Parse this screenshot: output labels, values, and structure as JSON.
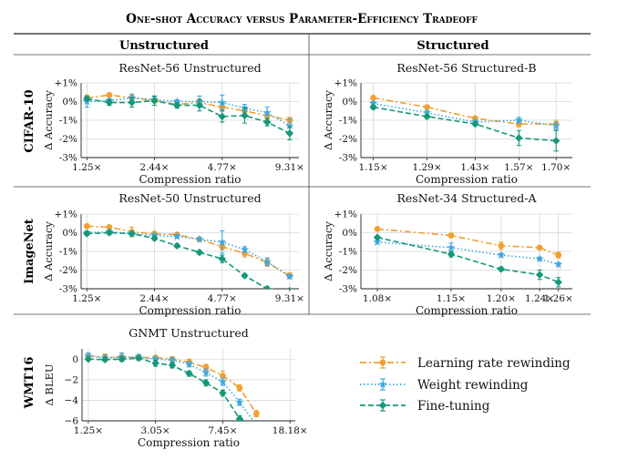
{
  "figure": {
    "title": "One-shot Accuracy versus Parameter-Efficiency Tradeoff",
    "col_unstructured": "Unstructured",
    "col_structured": "Structured",
    "row_labels": [
      "CIFAR-10",
      "ImageNet",
      "WMT16"
    ]
  },
  "legend": {
    "entries": [
      {
        "label": "Learning rate rewinding",
        "color": "#f0a030",
        "marker": "circle",
        "dash": "dashdot"
      },
      {
        "label": "Weight rewinding",
        "color": "#40a8e0",
        "marker": "star",
        "dash": "dotted"
      },
      {
        "label": "Fine-tuning",
        "color": "#14987a",
        "marker": "diamond",
        "dash": "dashed"
      }
    ]
  },
  "chart_data": [
    {
      "type": "line",
      "title": "ResNet-56 Unstructured",
      "xlabel": "Compression ratio",
      "ylabel": "Δ Accuracy",
      "x_scale": "log",
      "xlim": [
        1.18,
        10.2
      ],
      "ylim": [
        -3,
        1
      ],
      "xticks": [
        1.25,
        2.44,
        4.77,
        9.31
      ],
      "xtick_labels": [
        "1.25×",
        "2.44×",
        "4.77×",
        "9.31×"
      ],
      "yticks": [
        1,
        0,
        -1,
        -2,
        -3
      ],
      "ytick_labels": [
        "+1%",
        "0%",
        "-1%",
        "-2%",
        "-3%"
      ],
      "x": [
        1.25,
        1.56,
        1.95,
        2.44,
        3.05,
        3.81,
        4.77,
        5.96,
        7.45,
        9.31
      ],
      "series": [
        {
          "name": "Learning rate rewinding",
          "values": [
            0.2,
            0.35,
            0.2,
            0.05,
            -0.15,
            -0.05,
            -0.3,
            -0.5,
            -0.75,
            -1.0
          ],
          "errors": [
            0.15,
            0.1,
            0.15,
            0.1,
            0.15,
            0.2,
            0.2,
            0.2,
            0.2,
            0.15
          ]
        },
        {
          "name": "Weight rewinding",
          "values": [
            0.0,
            0.05,
            0.2,
            0.1,
            0.0,
            0.0,
            -0.05,
            -0.35,
            -0.6,
            -1.3
          ],
          "errors": [
            0.3,
            0.1,
            0.2,
            0.15,
            0.1,
            0.3,
            0.4,
            0.2,
            0.3,
            0.35
          ]
        },
        {
          "name": "Fine-tuning",
          "values": [
            0.15,
            -0.05,
            -0.05,
            0.05,
            -0.2,
            -0.2,
            -0.8,
            -0.75,
            -1.1,
            -1.7
          ],
          "errors": [
            0.1,
            0.15,
            0.25,
            0.25,
            0.15,
            0.3,
            0.3,
            0.4,
            0.2,
            0.35
          ]
        }
      ]
    },
    {
      "type": "line",
      "title": "ResNet-56 Structured-B",
      "xlabel": "Compression ratio",
      "ylabel": "Δ Accuracy",
      "x_scale": "log",
      "xlim": [
        1.12,
        1.76
      ],
      "ylim": [
        -3,
        1
      ],
      "xticks": [
        1.15,
        1.29,
        1.43,
        1.57,
        1.7
      ],
      "xtick_labels": [
        "1.15×",
        "1.29×",
        "1.43×",
        "1.57×",
        "1.70×"
      ],
      "yticks": [
        1,
        0,
        -1,
        -2,
        -3
      ],
      "ytick_labels": [
        "+1%",
        "0%",
        "-1%",
        "-2%",
        "-3%"
      ],
      "x": [
        1.15,
        1.29,
        1.43,
        1.57,
        1.7
      ],
      "series": [
        {
          "name": "Learning rate rewinding",
          "values": [
            0.2,
            -0.3,
            -0.9,
            -1.2,
            -1.2
          ],
          "errors": [
            0.1,
            0.1,
            0.1,
            0.15,
            0.2
          ]
        },
        {
          "name": "Weight rewinding",
          "values": [
            -0.1,
            -0.6,
            -1.1,
            -1.0,
            -1.3
          ],
          "errors": [
            0.1,
            0.1,
            0.1,
            0.15,
            0.2
          ]
        },
        {
          "name": "Fine-tuning",
          "values": [
            -0.3,
            -0.8,
            -1.2,
            -1.95,
            -2.1
          ],
          "errors": [
            0.1,
            0.1,
            0.1,
            0.4,
            0.55
          ]
        }
      ]
    },
    {
      "type": "line",
      "title": "ResNet-50 Unstructured",
      "xlabel": "Compression ratio",
      "ylabel": "Δ Accuracy",
      "x_scale": "log",
      "xlim": [
        1.18,
        10.2
      ],
      "ylim": [
        -3,
        1
      ],
      "xticks": [
        1.25,
        2.44,
        4.77,
        9.31
      ],
      "xtick_labels": [
        "1.25×",
        "2.44×",
        "4.77×",
        "9.31×"
      ],
      "yticks": [
        1,
        0,
        -1,
        -2,
        -3
      ],
      "ytick_labels": [
        "+1%",
        "0%",
        "-1%",
        "-2%",
        "-3%"
      ],
      "x": [
        1.25,
        1.56,
        1.95,
        2.44,
        3.05,
        3.81,
        4.77,
        5.96,
        7.45,
        9.31
      ],
      "series": [
        {
          "name": "Learning rate rewinding",
          "values": [
            0.35,
            0.3,
            0.05,
            -0.05,
            -0.1,
            -0.35,
            -0.75,
            -1.1,
            -1.6,
            -2.3
          ],
          "errors": [
            0.1,
            0.1,
            0.25,
            0.1,
            0.1,
            0.1,
            0.15,
            0.2,
            0.2,
            0.15
          ]
        },
        {
          "name": "Weight rewinding",
          "values": [
            0.0,
            0.05,
            -0.05,
            -0.15,
            -0.2,
            -0.35,
            -0.5,
            -0.9,
            -1.55,
            -2.35
          ],
          "errors": [
            0.1,
            0.1,
            0.1,
            0.1,
            0.1,
            0.1,
            0.6,
            0.15,
            0.2,
            0.1
          ]
        },
        {
          "name": "Fine-tuning",
          "values": [
            -0.05,
            0.0,
            -0.05,
            -0.3,
            -0.7,
            -1.05,
            -1.4,
            -2.3,
            -3.0,
            -3.1
          ],
          "errors": [
            0.05,
            0.05,
            0.05,
            0.1,
            0.1,
            0.1,
            0.2,
            0.1,
            0.1,
            0.1
          ]
        }
      ]
    },
    {
      "type": "line",
      "title": "ResNet-34 Structured-A",
      "xlabel": "Compression ratio",
      "ylabel": "Δ Accuracy",
      "x_scale": "log",
      "xlim": [
        1.065,
        1.275
      ],
      "ylim": [
        -3,
        1
      ],
      "xticks": [
        1.08,
        1.15,
        1.2,
        1.24,
        1.26
      ],
      "xtick_labels": [
        "1.08×",
        "1.15×",
        "1.20×",
        "1.24×",
        "1.26×"
      ],
      "yticks": [
        1,
        0,
        -1,
        -2,
        -3
      ],
      "ytick_labels": [
        "+1%",
        "0%",
        "-1%",
        "-2%",
        "-3%"
      ],
      "x": [
        1.08,
        1.15,
        1.2,
        1.24,
        1.26
      ],
      "series": [
        {
          "name": "Learning rate rewinding",
          "values": [
            0.2,
            -0.15,
            -0.7,
            -0.8,
            -1.2
          ],
          "errors": [
            0.05,
            0.1,
            0.2,
            0.1,
            0.15
          ]
        },
        {
          "name": "Weight rewinding",
          "values": [
            -0.5,
            -0.8,
            -1.2,
            -1.4,
            -1.7
          ],
          "errors": [
            0.1,
            0.25,
            0.1,
            0.1,
            0.1
          ]
        },
        {
          "name": "Fine-tuning",
          "values": [
            -0.25,
            -1.15,
            -1.95,
            -2.25,
            -2.65
          ],
          "errors": [
            0.05,
            0.15,
            0.1,
            0.25,
            0.25
          ]
        }
      ]
    },
    {
      "type": "line",
      "title": "GNMT Unstructured",
      "xlabel": "Compression ratio",
      "ylabel": "Δ BLEU",
      "x_scale": "log",
      "xlim": [
        1.15,
        19.5
      ],
      "ylim": [
        -6,
        1
      ],
      "xticks": [
        1.25,
        3.05,
        7.45,
        18.18
      ],
      "xtick_labels": [
        "1.25×",
        "3.05×",
        "7.45×",
        "18.18×"
      ],
      "yticks": [
        0,
        -2,
        -4,
        -6
      ],
      "ytick_labels": [
        "0",
        "−2",
        "−4",
        "−6"
      ],
      "x": [
        1.25,
        1.56,
        1.95,
        2.44,
        3.05,
        3.81,
        4.77,
        5.96,
        7.45,
        9.31,
        11.64
      ],
      "series": [
        {
          "name": "Learning rate rewinding",
          "values": [
            0.3,
            0.2,
            0.2,
            0.15,
            0.15,
            0.0,
            -0.3,
            -0.8,
            -1.6,
            -2.8,
            -5.3
          ],
          "errors": [
            0.3,
            0.3,
            0.35,
            0.25,
            0.2,
            0.25,
            0.3,
            0.3,
            0.45,
            0.3,
            0.3
          ]
        },
        {
          "name": "Weight rewinding",
          "values": [
            0.3,
            0.1,
            0.2,
            0.2,
            0.0,
            -0.1,
            -0.5,
            -1.3,
            -2.2,
            -4.2,
            -6.4
          ],
          "errors": [
            0.3,
            0.3,
            0.4,
            0.25,
            0.2,
            0.25,
            0.25,
            0.35,
            0.35,
            0.3,
            0.3
          ]
        },
        {
          "name": "Fine-tuning",
          "values": [
            0.0,
            -0.05,
            0.0,
            0.1,
            -0.4,
            -0.6,
            -1.4,
            -2.3,
            -3.3,
            -5.8,
            -6.6
          ],
          "errors": [
            0.1,
            0.1,
            0.2,
            0.2,
            0.3,
            0.25,
            0.25,
            0.3,
            0.3,
            0.3,
            0.3
          ]
        }
      ]
    }
  ]
}
